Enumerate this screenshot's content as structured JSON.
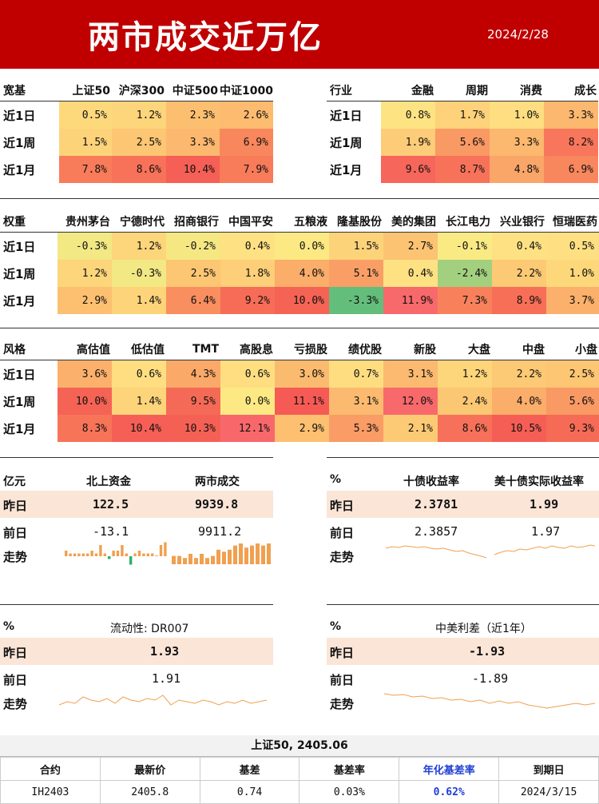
{
  "header": {
    "title": "两市成交近万亿",
    "date": "2024/2/28"
  },
  "broad": {
    "cols": [
      "宽基",
      "上证50",
      "沪深300",
      "中证500",
      "中证1000"
    ],
    "rows": [
      {
        "label": "近1日",
        "values": [
          "0.5%",
          "1.2%",
          "2.3%",
          "2.6%"
        ],
        "colors": [
          "#fdd97c",
          "#fdd57a",
          "#fcbf70",
          "#fcbb6f"
        ]
      },
      {
        "label": "近1周",
        "values": [
          "1.5%",
          "2.5%",
          "3.3%",
          "6.9%"
        ],
        "colors": [
          "#fdd37a",
          "#fcc673",
          "#fbb86e",
          "#f8875d"
        ]
      },
      {
        "label": "近1月",
        "values": [
          "7.8%",
          "8.6%",
          "10.4%",
          "7.9%"
        ],
        "colors": [
          "#f87c5a",
          "#f77259",
          "#f55f55",
          "#f87b5a"
        ]
      }
    ]
  },
  "industry": {
    "cols": [
      "行业",
      "金融",
      "周期",
      "消费",
      "成长"
    ],
    "rows": [
      {
        "label": "近1日",
        "values": [
          "0.8%",
          "1.7%",
          "1.0%",
          "3.3%"
        ],
        "colors": [
          "#fee382",
          "#fdd27a",
          "#fede80",
          "#fbb86e"
        ]
      },
      {
        "label": "近1周",
        "values": [
          "1.9%",
          "5.6%",
          "3.3%",
          "8.2%"
        ],
        "colors": [
          "#fdcc78",
          "#f99964",
          "#fbb86e",
          "#f8765b"
        ]
      },
      {
        "label": "近1月",
        "values": [
          "9.6%",
          "8.7%",
          "4.8%",
          "6.9%"
        ],
        "colors": [
          "#f6665a",
          "#f77259",
          "#faa668",
          "#f8875d"
        ]
      }
    ]
  },
  "weights": {
    "cols": [
      "权重",
      "贵州茅台",
      "宁德时代",
      "招商银行",
      "中国平安",
      "五粮液",
      "隆基股份",
      "美的集团",
      "长江电力",
      "兴业银行",
      "恒瑞医药"
    ],
    "rows": [
      {
        "label": "近1日",
        "values": [
          "-0.3%",
          "1.2%",
          "-0.2%",
          "0.4%",
          "0.0%",
          "1.5%",
          "2.7%",
          "-0.1%",
          "0.4%",
          "0.5%"
        ],
        "colors": [
          "#f2e884",
          "#fdd57a",
          "#f5e883",
          "#fee182",
          "#fde983",
          "#fdd37a",
          "#fcc372",
          "#faea84",
          "#fee182",
          "#fee082"
        ]
      },
      {
        "label": "近1周",
        "values": [
          "1.2%",
          "-0.3%",
          "2.5%",
          "1.8%",
          "4.0%",
          "5.1%",
          "0.4%",
          "-2.4%",
          "2.2%",
          "1.0%"
        ],
        "colors": [
          "#fdd57a",
          "#f2e884",
          "#fcc673",
          "#fdcf78",
          "#fbad6a",
          "#f99f65",
          "#fee182",
          "#a3d07e",
          "#fcc974",
          "#fdd87b"
        ]
      },
      {
        "label": "近1月",
        "values": [
          "2.9%",
          "1.4%",
          "6.4%",
          "9.2%",
          "10.0%",
          "-3.3%",
          "11.9%",
          "7.3%",
          "8.9%",
          "3.7%"
        ],
        "colors": [
          "#fcc070",
          "#fdd479",
          "#f98e5f",
          "#f66c56",
          "#f56355",
          "#63be7b",
          "#f8696b",
          "#f8815b",
          "#f76f57",
          "#fbb06b"
        ]
      }
    ]
  },
  "style": {
    "cols": [
      "风格",
      "高估值",
      "低估值",
      "TMT",
      "高股息",
      "亏损股",
      "绩优股",
      "新股",
      "大盘",
      "中盘",
      "小盘"
    ],
    "rows": [
      {
        "label": "近1日",
        "values": [
          "3.6%",
          "0.6%",
          "4.3%",
          "0.6%",
          "3.0%",
          "0.7%",
          "3.1%",
          "1.2%",
          "2.2%",
          "2.5%"
        ],
        "colors": [
          "#fbb16b",
          "#fede81",
          "#faa968",
          "#fede81",
          "#fbbb6f",
          "#fedd81",
          "#fbba6f",
          "#fdd57a",
          "#fcc974",
          "#fcc673"
        ]
      },
      {
        "label": "近1周",
        "values": [
          "10.0%",
          "1.4%",
          "9.5%",
          "0.0%",
          "11.1%",
          "3.1%",
          "12.0%",
          "2.4%",
          "4.0%",
          "5.6%"
        ],
        "colors": [
          "#f56355",
          "#fdd479",
          "#f56a56",
          "#fde983",
          "#f65a55",
          "#fbba6f",
          "#f8696b",
          "#fcc773",
          "#fbad6a",
          "#f99964"
        ]
      },
      {
        "label": "近1月",
        "values": [
          "8.3%",
          "10.4%",
          "10.3%",
          "12.1%",
          "2.9%",
          "5.3%",
          "2.1%",
          "8.6%",
          "10.5%",
          "9.3%"
        ],
        "colors": [
          "#f77459",
          "#f55f55",
          "#f56055",
          "#f8686b",
          "#fcc070",
          "#f99c65",
          "#fcca75",
          "#f77059",
          "#f55e55",
          "#f66b56"
        ]
      }
    ]
  },
  "flow": {
    "unit": "亿元",
    "col1": "北上资金",
    "col2": "两市成交",
    "labels": {
      "yesterday": "昨日",
      "prev": "前日",
      "trend": "走势"
    },
    "yesterday": {
      "north": "122.5",
      "turnover": "9939.8"
    },
    "prev": {
      "north": "-13.1",
      "turnover": "9911.2"
    },
    "north_bars": [
      2,
      1,
      1,
      1,
      1,
      1,
      2,
      1,
      4,
      1,
      -1,
      2,
      2,
      4,
      1,
      -3,
      1,
      2,
      1,
      1,
      1,
      0,
      4,
      5
    ],
    "turnover_bars": [
      4,
      4,
      3,
      5,
      3,
      5,
      3,
      4,
      7,
      6,
      7,
      9,
      10,
      8,
      9,
      10,
      9,
      10
    ]
  },
  "bond": {
    "unit": "%",
    "col1": "十债收益率",
    "col2": "美十债实际收益率",
    "labels": {
      "yesterday": "昨日",
      "prev": "前日",
      "trend": "走势"
    },
    "yesterday": {
      "cn10y": "2.3781",
      "us_real": "1.99"
    },
    "prev": {
      "cn10y": "2.3857",
      "us_real": "1.97"
    }
  },
  "liquidity": {
    "unit": "%",
    "title": "流动性: DR007",
    "labels": {
      "yesterday": "昨日",
      "prev": "前日",
      "trend": "走势"
    },
    "yesterday": "1.93",
    "prev": "1.91"
  },
  "spread": {
    "unit": "%",
    "title": "中美利差（近1年）",
    "labels": {
      "yesterday": "昨日",
      "prev": "前日",
      "trend": "走势"
    },
    "yesterday": "-1.93",
    "prev": "-1.89"
  },
  "futures": {
    "title": "上证50, 2405.06",
    "headers": [
      "合约",
      "最新价",
      "基差",
      "基差率",
      "年化基差率",
      "到期日"
    ],
    "row": [
      "IH2403",
      "2405.8",
      "0.74",
      "0.03%",
      "0.62%",
      "2024/3/15"
    ]
  },
  "colors": {
    "header_bg": "#c00000",
    "peach": "#fbe5d6",
    "sparkline": "#f0a050",
    "bar_up": "#f0a050",
    "bar_down": "#2db06a",
    "blue": "#1f3fd4"
  }
}
